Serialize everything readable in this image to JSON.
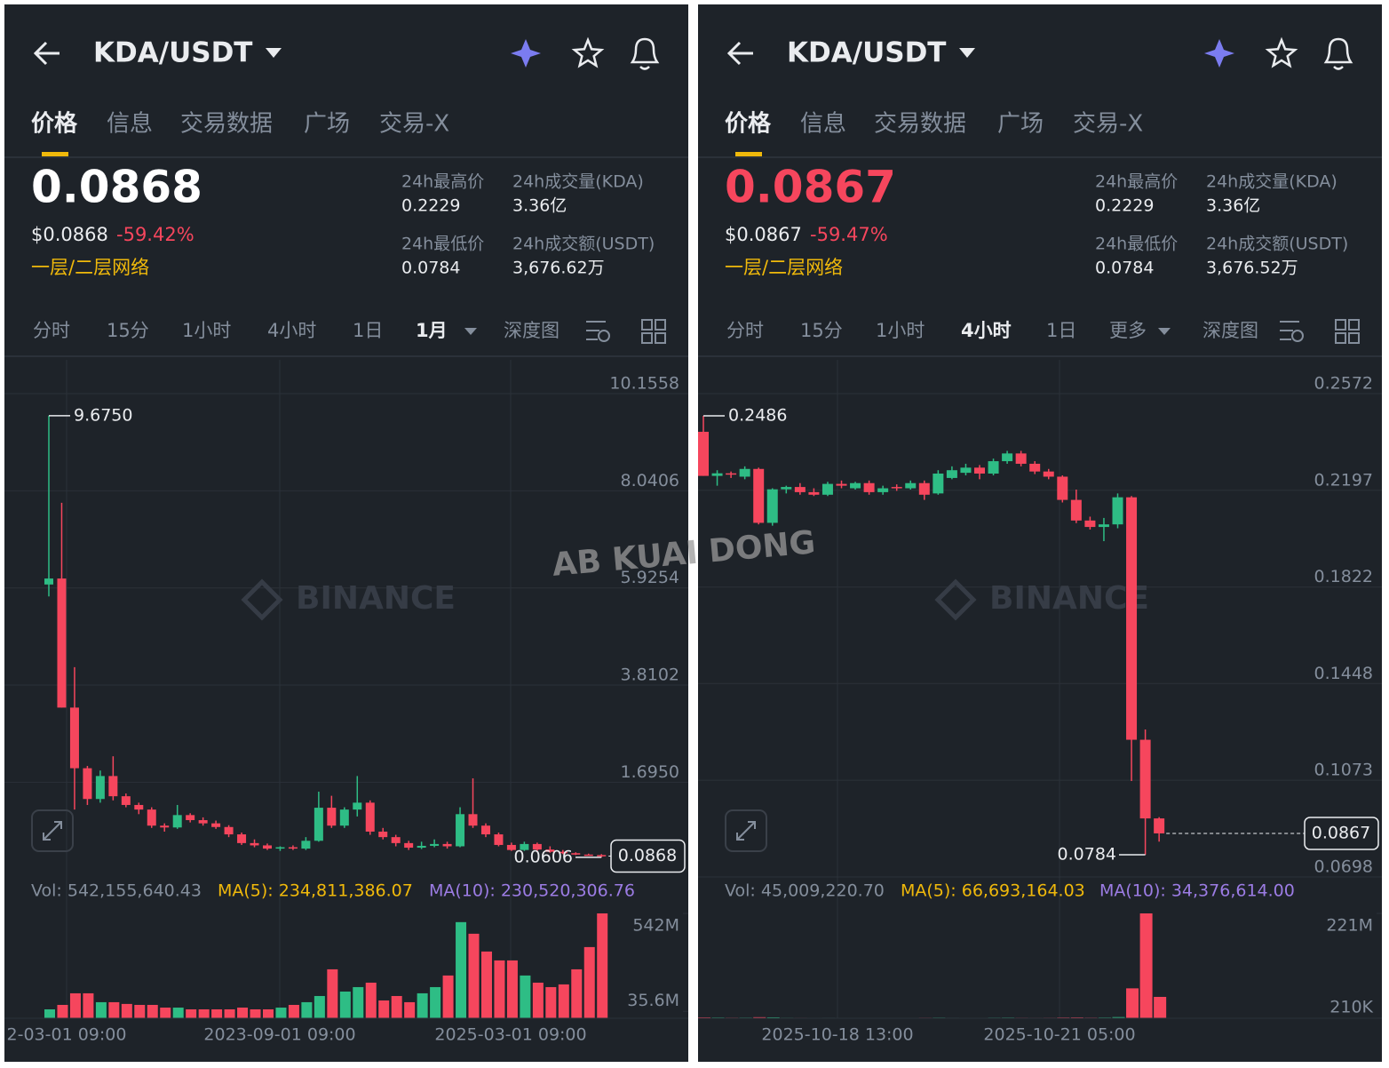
{
  "panels": [
    {
      "header": {
        "title": "KDA/USDT"
      },
      "tabs": [
        "价格",
        "信息",
        "交易数据",
        "广场",
        "交易-X"
      ],
      "active_tab": 0,
      "price": "0.0868",
      "price_color": "#ffffff",
      "usd_price": "$0.0868",
      "change": "-59.42%",
      "sector": "一层/二层网络",
      "stats": [
        {
          "label": "24h最高价",
          "value": "0.2229"
        },
        {
          "label": "24h成交量(KDA)",
          "value": "3.36亿"
        },
        {
          "label": "24h最低价",
          "value": "0.0784"
        },
        {
          "label": "24h成交额(USDT)",
          "value": "3,676.62万"
        }
      ],
      "timeframes": [
        "分时",
        "15分",
        "1小时",
        "4小时",
        "1日",
        "1月",
        "深度图"
      ],
      "active_timeframe": 5,
      "chart": {
        "type": "candlestick",
        "up_color": "#2ebd85",
        "down_color": "#f6465d",
        "ylim": [
          0,
          10.1558
        ],
        "yticks": [
          10.1558,
          8.0406,
          5.9254,
          3.8102,
          {
            "value": 1.695,
            "label": "1.6950"
          }
        ],
        "candles": {
          "open": [
            6.0,
            6.13,
            3.32,
            2.0,
            1.33,
            1.83,
            1.39,
            1.2,
            1.1,
            0.75,
            0.71,
            0.98,
            0.87,
            0.8,
            0.72,
            0.56,
            0.37,
            0.32,
            0.25,
            0.28,
            0.25,
            0.42,
            1.14,
            0.75,
            1.1,
            1.25,
            0.62,
            0.5,
            0.37,
            0.27,
            0.31,
            0.35,
            0.3,
            1.0,
            0.75,
            0.56,
            0.33,
            0.22,
            0.35,
            0.23,
            0.18,
            0.15,
            0.12,
            0.11
          ],
          "high": [
            9.675,
            7.78,
            4.2,
            2.05,
            1.95,
            2.26,
            1.45,
            1.25,
            1.15,
            0.8,
            1.2,
            1.02,
            0.93,
            0.86,
            0.76,
            0.6,
            0.45,
            0.36,
            0.3,
            0.32,
            0.5,
            1.49,
            1.4,
            1.15,
            1.83,
            1.3,
            0.7,
            0.55,
            0.42,
            0.4,
            0.45,
            0.4,
            1.15,
            1.78,
            0.8,
            0.6,
            0.38,
            0.4,
            0.38,
            0.3,
            0.22,
            0.17,
            0.14,
            0.13
          ],
          "low": [
            5.74,
            3.32,
            1.1,
            1.2,
            1.25,
            1.3,
            1.15,
            1.0,
            0.7,
            0.62,
            0.68,
            0.82,
            0.75,
            0.68,
            0.5,
            0.33,
            0.28,
            0.22,
            0.2,
            0.22,
            0.22,
            0.4,
            0.7,
            0.7,
            0.95,
            0.55,
            0.45,
            0.3,
            0.22,
            0.24,
            0.28,
            0.25,
            0.28,
            0.7,
            0.5,
            0.3,
            0.2,
            0.2,
            0.2,
            0.16,
            0.13,
            0.11,
            0.1,
            0.0606
          ],
          "close": [
            6.13,
            3.32,
            2.0,
            1.33,
            1.83,
            1.39,
            1.2,
            1.1,
            0.75,
            0.71,
            0.98,
            0.87,
            0.8,
            0.72,
            0.56,
            0.37,
            0.32,
            0.25,
            0.28,
            0.25,
            0.42,
            1.14,
            0.75,
            1.1,
            1.25,
            0.62,
            0.5,
            0.37,
            0.27,
            0.31,
            0.35,
            0.3,
            1.0,
            0.75,
            0.56,
            0.33,
            0.22,
            0.35,
            0.23,
            0.18,
            0.15,
            0.12,
            0.11,
            0.0868
          ]
        },
        "high_label": {
          "value": 9.675,
          "label": "9.6750"
        },
        "low_label": 0.0606,
        "last_price": 0.0868
      },
      "volume": {
        "legend": [
          "Vol: 542,155,640.43",
          "MA(5): 234,811,386.07",
          "MA(10): 230,520,306.76"
        ],
        "ylim": [
          0,
          542155640.43
        ],
        "yticks": [
          {
            "value": 542000000,
            "label": "542M"
          },
          {
            "value": 35600000,
            "label": "35.6M"
          }
        ],
        "values": [
          46000000,
          69000000,
          129000000,
          129000000,
          83000000,
          83000000,
          74000000,
          69000000,
          69000000,
          55000000,
          55000000,
          46000000,
          46000000,
          46000000,
          46000000,
          55000000,
          46000000,
          46000000,
          55000000,
          69000000,
          83000000,
          115000000,
          253000000,
          138000000,
          161000000,
          184000000,
          92000000,
          115000000,
          83000000,
          129000000,
          161000000,
          221000000,
          497000000,
          437000000,
          345000000,
          299000000,
          299000000,
          221000000,
          184000000,
          161000000,
          175000000,
          253000000,
          368000000,
          542155640.43
        ]
      },
      "x_labels": [
        "2-03-01 09:00",
        "2023-09-01 09:00",
        "2025-03-01 09:00"
      ]
    },
    {
      "header": {
        "title": "KDA/USDT"
      },
      "tabs": [
        "价格",
        "信息",
        "交易数据",
        "广场",
        "交易-X"
      ],
      "active_tab": 0,
      "price": "0.0867",
      "price_color": "#f6465d",
      "usd_price": "$0.0867",
      "change": "-59.47%",
      "sector": "一层/二层网络",
      "stats": [
        {
          "label": "24h最高价",
          "value": "0.2229"
        },
        {
          "label": "24h成交量(KDA)",
          "value": "3.36亿"
        },
        {
          "label": "24h最低价",
          "value": "0.0784"
        },
        {
          "label": "24h成交额(USDT)",
          "value": "3,676.52万"
        }
      ],
      "timeframes": [
        "分时",
        "15分",
        "1小时",
        "4小时",
        "1日",
        "更多",
        "深度图"
      ],
      "active_timeframe": 3,
      "chart": {
        "type": "candlestick",
        "up_color": "#2ebd85",
        "down_color": "#f6465d",
        "ylim": [
          0.0698,
          0.2572
        ],
        "yticks": [
          0.2572,
          0.2197,
          0.1822,
          0.1448,
          0.1073,
          0.0698
        ],
        "candles": {
          "open": [
            0.2424,
            0.2253,
            0.2263,
            0.225,
            0.228,
            0.2071,
            0.2201,
            0.221,
            0.219,
            0.218,
            0.2222,
            0.2205,
            0.2225,
            0.219,
            0.221,
            0.2205,
            0.2225,
            0.2185,
            0.2245,
            0.2265,
            0.2285,
            0.2262,
            0.231,
            0.234,
            0.23,
            0.227,
            0.225,
            0.216,
            0.208,
            0.2055,
            0.2065,
            0.217,
            0.123,
            0.0925
          ],
          "high": [
            0.2486,
            0.2275,
            0.227,
            0.229,
            0.2285,
            0.2205,
            0.2215,
            0.2225,
            0.2205,
            0.223,
            0.2235,
            0.223,
            0.2235,
            0.2215,
            0.222,
            0.2235,
            0.2235,
            0.2275,
            0.229,
            0.23,
            0.2295,
            0.232,
            0.235,
            0.235,
            0.231,
            0.228,
            0.2255,
            0.22,
            0.2095,
            0.209,
            0.2185,
            0.2175,
            0.127,
            0.093
          ],
          "low": [
            0.2253,
            0.2215,
            0.2245,
            0.224,
            0.2065,
            0.206,
            0.2185,
            0.218,
            0.2175,
            0.2175,
            0.2205,
            0.22,
            0.218,
            0.218,
            0.2195,
            0.22,
            0.216,
            0.218,
            0.224,
            0.2255,
            0.224,
            0.2255,
            0.23,
            0.229,
            0.226,
            0.224,
            0.215,
            0.207,
            0.2045,
            0.2,
            0.205,
            0.107,
            0.0784,
            0.0835
          ],
          "close": [
            0.2253,
            0.2263,
            0.2258,
            0.228,
            0.2071,
            0.2201,
            0.221,
            0.219,
            0.218,
            0.2222,
            0.2215,
            0.2225,
            0.219,
            0.2205,
            0.2205,
            0.2225,
            0.218,
            0.2262,
            0.2275,
            0.2285,
            0.2262,
            0.231,
            0.234,
            0.23,
            0.227,
            0.225,
            0.216,
            0.208,
            0.2055,
            0.2065,
            0.217,
            0.123,
            0.0925,
            0.0867
          ]
        },
        "high_label": 0.2486,
        "low_label": 0.0784,
        "last_price": 0.0867
      },
      "volume": {
        "legend": [
          "Vol: 45,009,220.70",
          "MA(5): 66,693,164.03",
          "MA(10): 34,376,614.00"
        ],
        "ylim": [
          0,
          221000000
        ],
        "yticks": [
          {
            "value": 221000000,
            "label": "221M"
          },
          {
            "value": 210000,
            "label": "210K"
          }
        ],
        "values": [
          1800000,
          1500000,
          1200000,
          1300000,
          2200000,
          1900000,
          1100000,
          1000000,
          900000,
          1000000,
          900000,
          800000,
          900000,
          800000,
          700000,
          800000,
          1100000,
          1300000,
          1000000,
          900000,
          900000,
          1200000,
          1400000,
          1100000,
          1000000,
          1100000,
          1600000,
          1800000,
          1300000,
          1500000,
          2400000,
          63000000,
          221000000,
          45009220.7
        ]
      },
      "x_labels": [
        "2025-10-18 13:00",
        "2025-10-21 05:00"
      ]
    }
  ],
  "watermark": "AB KUAI DONG",
  "brand": "BINANCE"
}
